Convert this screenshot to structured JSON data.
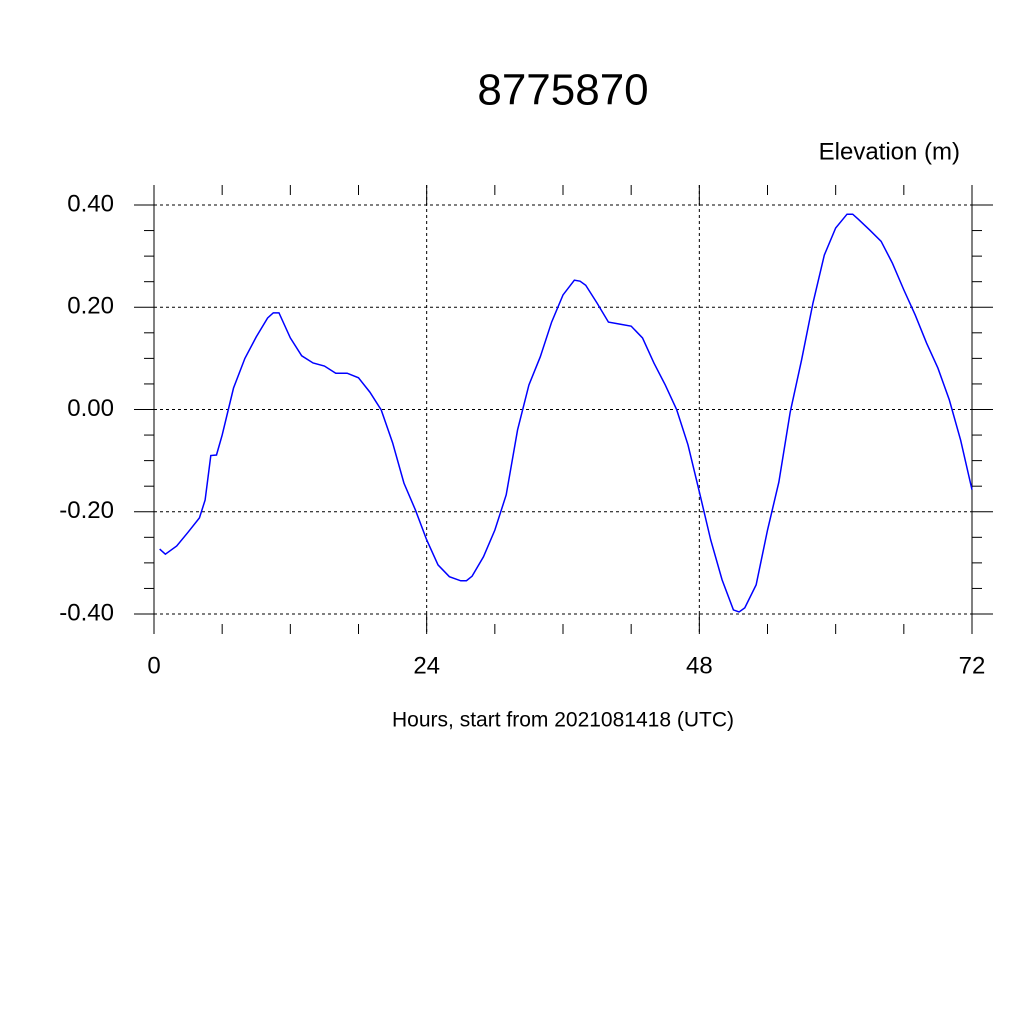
{
  "chart_data": {
    "type": "line",
    "title": "8775870",
    "y_label": "Elevation (m)",
    "x_label": "Hours, start from 2021081418 (UTC)",
    "xlim": [
      0,
      72
    ],
    "xticks": [
      0,
      24,
      48,
      72
    ],
    "ylim": [
      -0.4,
      0.4
    ],
    "yticks": [
      {
        "value": 0.4,
        "label": "0.40"
      },
      {
        "value": 0.2,
        "label": "0.20"
      },
      {
        "value": 0,
        "label": "0.00"
      },
      {
        "value": -0.2,
        "label": "-0.20"
      },
      {
        "value": -0.4,
        "label": "-0.40"
      }
    ],
    "grid": true,
    "series": [
      {
        "color": "#0000ff",
        "x": [
          0.5,
          1,
          2,
          3,
          4,
          4.5,
          5,
          5.5,
          6,
          7,
          8,
          9,
          10,
          10.5,
          11,
          12,
          13,
          14,
          15,
          16,
          17,
          18,
          19,
          20,
          21,
          22,
          23,
          24,
          25,
          26,
          27,
          27.5,
          28,
          29,
          30,
          31,
          32,
          33,
          34,
          35,
          36,
          37,
          37.5,
          38,
          39,
          40,
          41,
          42,
          43,
          44,
          45,
          46,
          47,
          48,
          49,
          50,
          51,
          51.5,
          52,
          53,
          54,
          55,
          56,
          57,
          58,
          59,
          60,
          61,
          61.5,
          62,
          63,
          64,
          65,
          66,
          67,
          68,
          69,
          70,
          71,
          72
        ],
        "values": [
          -0.273,
          -0.283,
          -0.267,
          -0.24,
          -0.212,
          -0.177,
          -0.09,
          -0.089,
          -0.05,
          0.042,
          0.1,
          0.142,
          0.179,
          0.189,
          0.189,
          0.14,
          0.105,
          0.091,
          0.085,
          0.071,
          0.071,
          0.062,
          0.034,
          -0.001,
          -0.065,
          -0.144,
          -0.196,
          -0.255,
          -0.304,
          -0.327,
          -0.335,
          -0.335,
          -0.326,
          -0.288,
          -0.236,
          -0.167,
          -0.04,
          0.048,
          0.103,
          0.171,
          0.224,
          0.253,
          0.251,
          0.243,
          0.208,
          0.171,
          0.167,
          0.163,
          0.14,
          0.091,
          0.048,
          0,
          -0.069,
          -0.161,
          -0.255,
          -0.333,
          -0.392,
          -0.396,
          -0.388,
          -0.343,
          -0.236,
          -0.142,
          -0.005,
          0.097,
          0.208,
          0.302,
          0.355,
          0.382,
          0.382,
          0.372,
          0.351,
          0.329,
          0.286,
          0.234,
          0.185,
          0.13,
          0.081,
          0.019,
          -0.06,
          -0.157
        ]
      }
    ]
  }
}
